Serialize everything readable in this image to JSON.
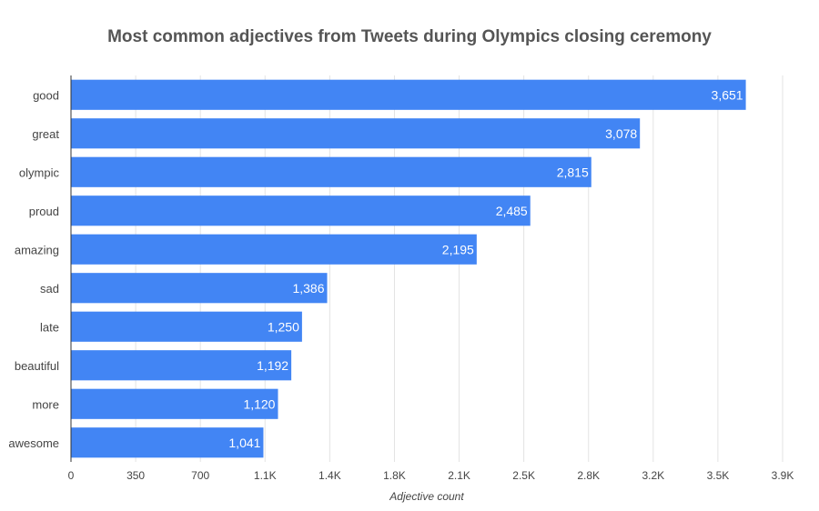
{
  "chart_data": {
    "type": "bar",
    "orientation": "horizontal",
    "title": "Most common adjectives from Tweets during Olympics closing ceremony",
    "xlabel": "Adjective count",
    "ylabel": "",
    "categories": [
      "good",
      "great",
      "olympic",
      "proud",
      "amazing",
      "sad",
      "late",
      "beautiful",
      "more",
      "awesome"
    ],
    "values": [
      3651,
      3078,
      2815,
      2485,
      2195,
      1386,
      1250,
      1192,
      1120,
      1041
    ],
    "value_labels": [
      "3,651",
      "3,078",
      "2,815",
      "2,485",
      "2,195",
      "1,386",
      "1,250",
      "1,192",
      "1,120",
      "1,041"
    ],
    "xlim": [
      0,
      3850
    ],
    "x_ticks": [
      0,
      350,
      700,
      1050,
      1400,
      1750,
      2100,
      2450,
      2800,
      3150,
      3500,
      3850
    ],
    "x_tick_labels": [
      "0",
      "350",
      "700",
      "1.1K",
      "1.4K",
      "1.8K",
      "2.1K",
      "2.5K",
      "2.8K",
      "3.2K",
      "3.5K",
      "3.9K"
    ],
    "grid": true,
    "legend": "none",
    "bar_color": "#4285f4"
  }
}
